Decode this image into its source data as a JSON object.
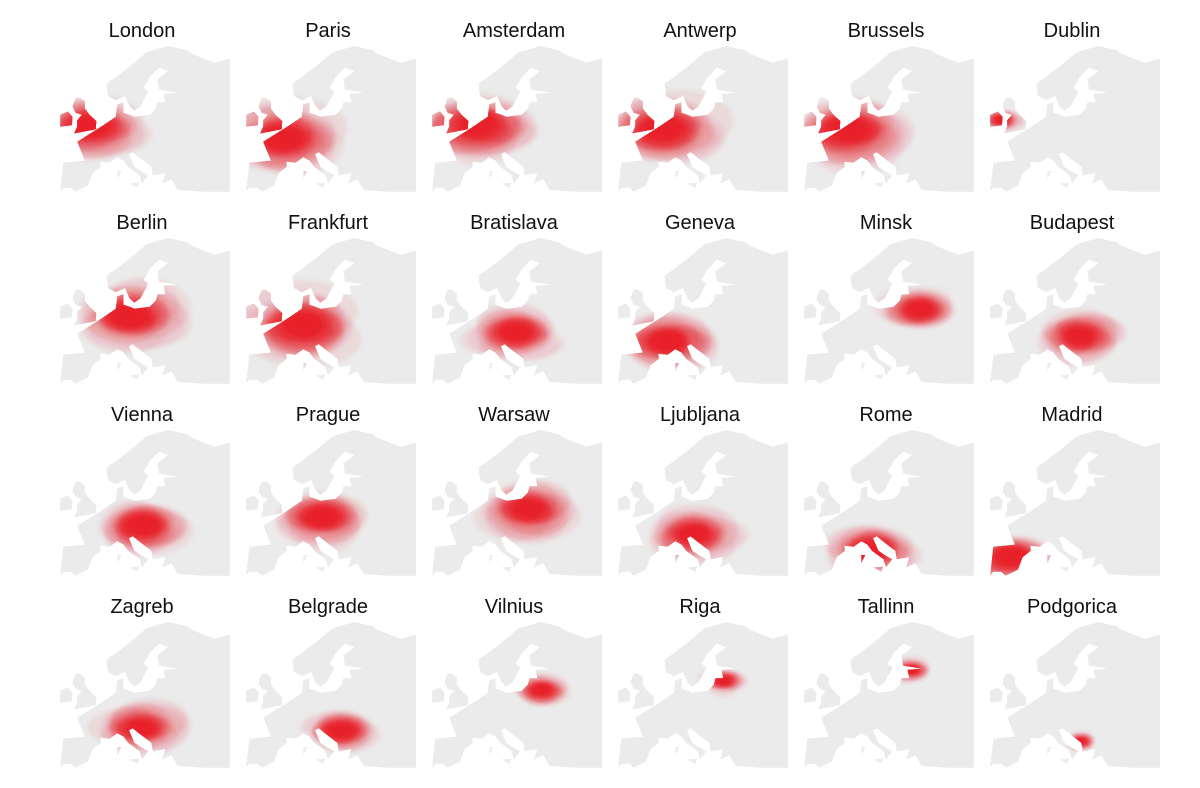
{
  "cities": [
    {
      "name": "London",
      "hotspot": {
        "lon": -0.1,
        "lat": 51.5
      },
      "spread": 0.9
    },
    {
      "name": "Paris",
      "hotspot": {
        "lon": 2.3,
        "lat": 48.9
      },
      "spread": 1.0
    },
    {
      "name": "Amsterdam",
      "hotspot": {
        "lon": 4.9,
        "lat": 52.4
      },
      "spread": 0.95
    },
    {
      "name": "Antwerp",
      "hotspot": {
        "lon": 4.4,
        "lat": 51.2
      },
      "spread": 0.95
    },
    {
      "name": "Brussels",
      "hotspot": {
        "lon": 4.4,
        "lat": 50.8
      },
      "spread": 0.95
    },
    {
      "name": "Dublin",
      "hotspot": {
        "lon": -6.3,
        "lat": 53.3
      },
      "spread": 0.2
    },
    {
      "name": "Berlin",
      "hotspot": {
        "lon": 13.4,
        "lat": 52.5
      },
      "spread": 0.9
    },
    {
      "name": "Frankfurt",
      "hotspot": {
        "lon": 8.7,
        "lat": 50.1
      },
      "spread": 1.0
    },
    {
      "name": "Bratislava",
      "hotspot": {
        "lon": 17.1,
        "lat": 48.1
      },
      "spread": 0.7
    },
    {
      "name": "Geneva",
      "hotspot": {
        "lon": 6.1,
        "lat": 46.2
      },
      "spread": 0.8
    },
    {
      "name": "Minsk",
      "hotspot": {
        "lon": 27.6,
        "lat": 53.9
      },
      "spread": 0.55
    },
    {
      "name": "Budapest",
      "hotspot": {
        "lon": 19.0,
        "lat": 47.5
      },
      "spread": 0.65
    },
    {
      "name": "Vienna",
      "hotspot": {
        "lon": 16.4,
        "lat": 48.2
      },
      "spread": 0.75
    },
    {
      "name": "Prague",
      "hotspot": {
        "lon": 14.4,
        "lat": 50.1
      },
      "spread": 0.75
    },
    {
      "name": "Warsaw",
      "hotspot": {
        "lon": 21.0,
        "lat": 52.2
      },
      "spread": 0.75
    },
    {
      "name": "Ljubljana",
      "hotspot": {
        "lon": 14.5,
        "lat": 46.1
      },
      "spread": 0.7
    },
    {
      "name": "Rome",
      "hotspot": {
        "lon": 12.5,
        "lat": 41.9
      },
      "spread": 0.7
    },
    {
      "name": "Madrid",
      "hotspot": {
        "lon": -3.7,
        "lat": 40.4
      },
      "spread": 0.7
    },
    {
      "name": "Zagreb",
      "hotspot": {
        "lon": 16.0,
        "lat": 45.8
      },
      "spread": 0.65
    },
    {
      "name": "Belgrade",
      "hotspot": {
        "lon": 20.5,
        "lat": 44.8
      },
      "spread": 0.55
    },
    {
      "name": "Vilnius",
      "hotspot": {
        "lon": 25.3,
        "lat": 54.7
      },
      "spread": 0.35
    },
    {
      "name": "Riga",
      "hotspot": {
        "lon": 24.1,
        "lat": 56.9
      },
      "spread": 0.25
    },
    {
      "name": "Tallinn",
      "hotspot": {
        "lon": 24.7,
        "lat": 59.4
      },
      "spread": 0.2
    },
    {
      "name": "Podgorica",
      "hotspot": {
        "lon": 19.3,
        "lat": 42.4
      },
      "spread": 0.12
    }
  ],
  "colors": {
    "land": "#ebebeb",
    "heat": "#e8202a",
    "background": "#ffffff"
  }
}
